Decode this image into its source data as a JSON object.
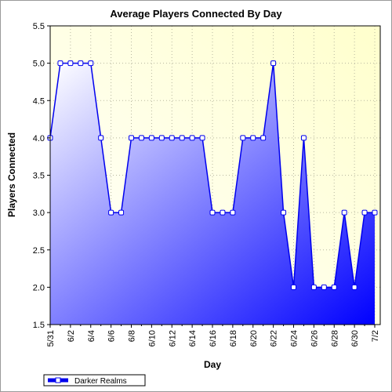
{
  "chart_data": {
    "type": "area",
    "title": "Average Players Connected By Day",
    "xlabel": "Day",
    "ylabel": "Players Connected",
    "ylim": [
      1.5,
      5.5
    ],
    "yticks": [
      "1.5",
      "2.0",
      "2.5",
      "3.0",
      "3.5",
      "4.0",
      "4.5",
      "5.0",
      "5.5"
    ],
    "xtick_labels": [
      "5/31",
      "6/2",
      "6/4",
      "6/6",
      "6/8",
      "6/10",
      "6/12",
      "6/14",
      "6/16",
      "6/18",
      "6/20",
      "6/22",
      "6/24",
      "6/26",
      "6/28",
      "6/30",
      "7/2"
    ],
    "x": [
      "5/31",
      "6/1",
      "6/2",
      "6/3",
      "6/4",
      "6/5",
      "6/6",
      "6/7",
      "6/8",
      "6/9",
      "6/10",
      "6/11",
      "6/12",
      "6/13",
      "6/14",
      "6/15",
      "6/16",
      "6/17",
      "6/18",
      "6/19",
      "6/20",
      "6/21",
      "6/22",
      "6/23",
      "6/24",
      "6/25",
      "6/26",
      "6/27",
      "6/28",
      "6/29",
      "6/30",
      "7/1",
      "7/2"
    ],
    "series": [
      {
        "name": "Darker Realms",
        "values": [
          4,
          5,
          5,
          5,
          5,
          4,
          3,
          3,
          4,
          4,
          4,
          4,
          4,
          4,
          4,
          4,
          3,
          3,
          3,
          4,
          4,
          4,
          5,
          3,
          2,
          4,
          2,
          2,
          2,
          3,
          2,
          3,
          3
        ]
      }
    ],
    "grid": true,
    "legend_position": "bottom-left",
    "colors": {
      "line": "#0000ee",
      "fill_light": "#ffffff",
      "fill_dark": "#0000ff",
      "plot_bg_top": "#ffffcc",
      "plot_bg_bottom": "#ffffff"
    }
  }
}
